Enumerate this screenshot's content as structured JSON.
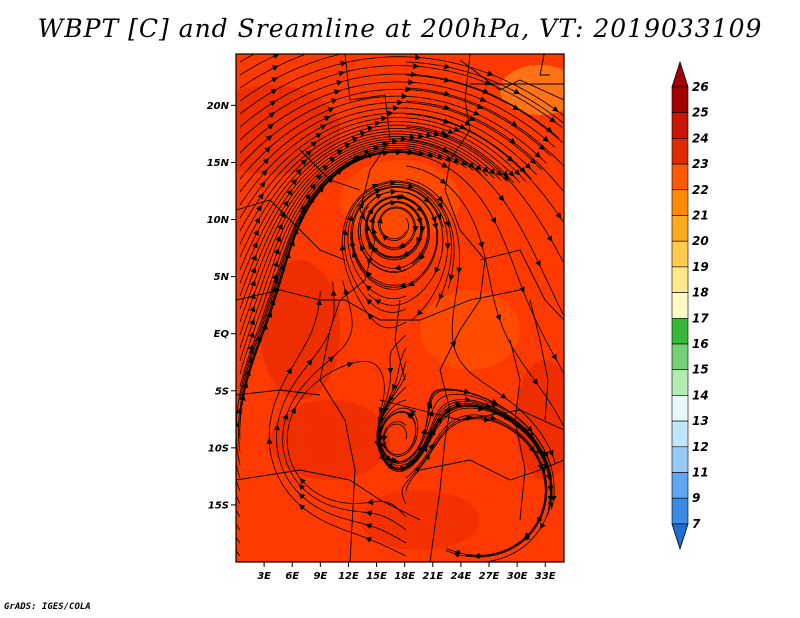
{
  "title": "WBPT [C] and Sreamline at 200hPa, VT: 2019033109",
  "credit": "GrADS: IGES/COLA",
  "map": {
    "lat_labels": [
      "20N",
      "15N",
      "10N",
      "5N",
      "EQ",
      "5S",
      "10S",
      "15S"
    ],
    "lat_values": [
      20,
      15,
      10,
      5,
      0,
      -5,
      -10,
      -15
    ],
    "lon_labels": [
      "3E",
      "6E",
      "9E",
      "12E",
      "15E",
      "18E",
      "21E",
      "24E",
      "27E",
      "30E",
      "33E"
    ],
    "lon_values": [
      3,
      6,
      9,
      12,
      15,
      18,
      21,
      24,
      27,
      30,
      33
    ],
    "lon_range": [
      0,
      35
    ],
    "lat_range": [
      -20,
      24.5
    ],
    "field_color": "#ff3a00",
    "warm_color": "#e02200",
    "cool_color": "#ff6a00"
  },
  "colorbar": {
    "labels": [
      "26",
      "25",
      "24",
      "23",
      "22",
      "21",
      "20",
      "19",
      "18",
      "17",
      "16",
      "15",
      "14",
      "13",
      "12",
      "11",
      "9",
      "7"
    ],
    "colors": [
      "#a50000",
      "#c81400",
      "#e02a00",
      "#ff5a00",
      "#ff8c00",
      "#ffaa1e",
      "#ffcb4b",
      "#ffe88c",
      "#fffac4",
      "#38b838",
      "#73d273",
      "#b2eab2",
      "#e6f8fa",
      "#bfe6fa",
      "#96c8f5",
      "#5fa6f0",
      "#3c8ce6",
      "#1e6ed2"
    ],
    "top_arrow_color": "#a50000",
    "bottom_arrow_color": "#1e6ed2"
  }
}
